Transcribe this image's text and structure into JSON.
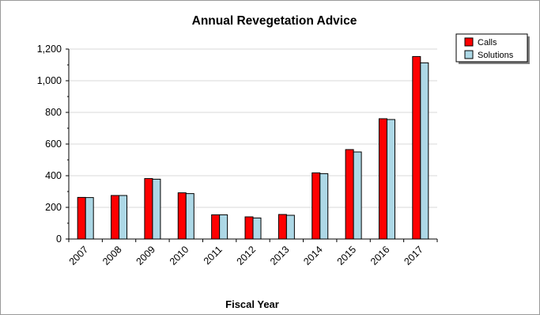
{
  "colors": {
    "calls": "#ff0000",
    "solutions": "#add8e6",
    "bar_stroke": "#000000",
    "grid": "#d9d9d9"
  },
  "chart_data": {
    "type": "bar",
    "title": "Annual Revegetation Advice",
    "xlabel": "Fiscal Year",
    "ylabel": "",
    "categories": [
      "2007",
      "2008",
      "2009",
      "2010",
      "2011",
      "2012",
      "2013",
      "2014",
      "2015",
      "2016",
      "2017"
    ],
    "series": [
      {
        "name": "Calls",
        "values": [
          263,
          275,
          382,
          292,
          153,
          140,
          155,
          418,
          565,
          760,
          1153
        ]
      },
      {
        "name": "Solutions",
        "values": [
          262,
          275,
          378,
          287,
          153,
          133,
          150,
          413,
          550,
          755,
          1113
        ]
      }
    ],
    "ylim": [
      0,
      1200
    ],
    "yticks": [
      0,
      200,
      400,
      600,
      800,
      1000,
      1200
    ],
    "ytick_labels": [
      "0",
      "200",
      "400",
      "600",
      "800",
      "1,000",
      "1,200"
    ],
    "grid": true,
    "legend": "top-right"
  }
}
